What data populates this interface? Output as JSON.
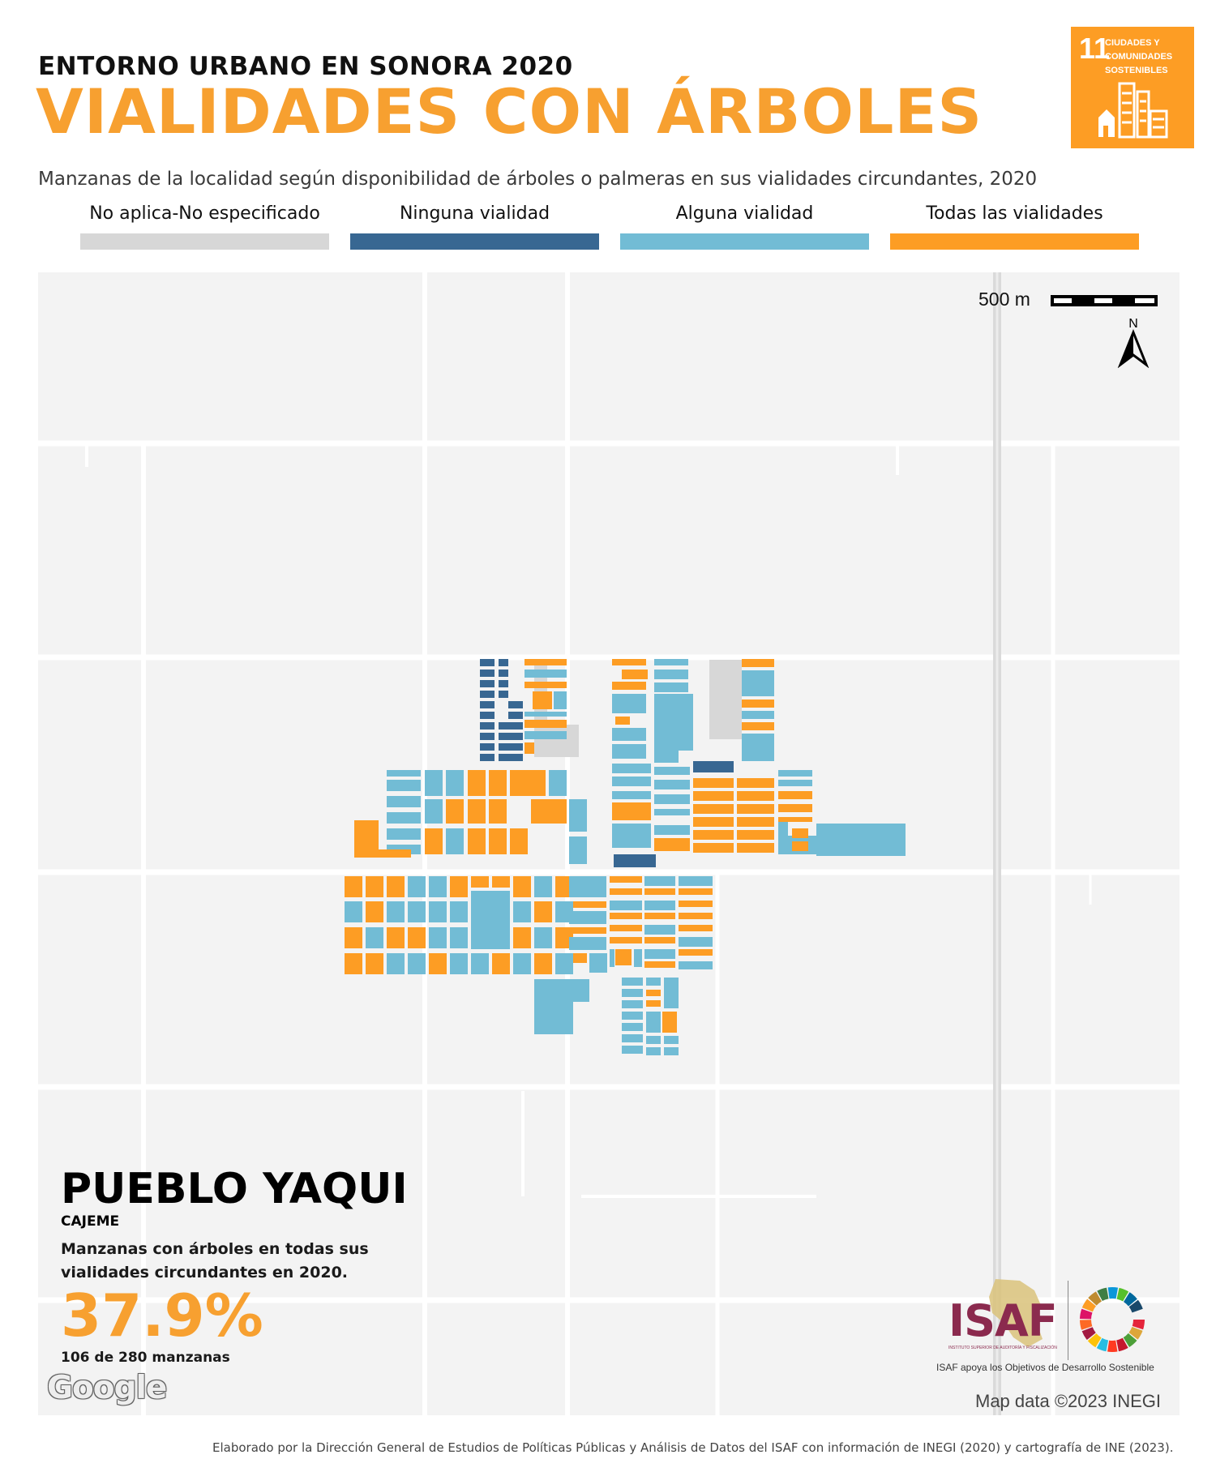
{
  "header": {
    "kicker": "ENTORNO URBANO EN SONORA 2020",
    "title": "VIALIDADES CON ÁRBOLES"
  },
  "ods_badge": {
    "number": "11",
    "text": "CIUDADES Y COMUNIDADES SOSTENIBLES",
    "color": "#fd9d24"
  },
  "subtitle": "Manzanas de la localidad según disponibilidad de árboles o palmeras en sus vialidades circundantes, 2020",
  "legend": [
    {
      "label": "No aplica-No especificado",
      "color": "#d7d7d7"
    },
    {
      "label": "Ninguna vialidad",
      "color": "#386792"
    },
    {
      "label": "Alguna vialidad",
      "color": "#72bcd5"
    },
    {
      "label": "Todas las vialidades",
      "color": "#fd9d24"
    }
  ],
  "map": {
    "scale_label": "500 m",
    "north_label": "N",
    "background_color": "#f3f3f3",
    "road_color": "#ffffff",
    "highway_color": "#dadada"
  },
  "place": {
    "name": "PUEBLO YAQUI",
    "municipio": "CAJEME",
    "description": "Manzanas con árboles en todas sus vialidades circundantes en 2020.",
    "percent": "37.9%",
    "count": "106 de 280 manzanas"
  },
  "attribution": {
    "google": "Google",
    "map_data": "Map data ©2023 INEGI"
  },
  "logos": {
    "isaf": "ISAF",
    "isaf_sub": "INSTITUTO SUPERIOR DE AUDITORÍA Y FISCALIZACIÓN",
    "tagline": "ISAF apoya los Objetivos de Desarrollo Sostenible"
  },
  "footer": "Elaborado por la Dirección General de Estudios de Políticas Públicas y Análisis de Datos del ISAF con información de INEGI (2020) y cartografía de INE (2023)."
}
